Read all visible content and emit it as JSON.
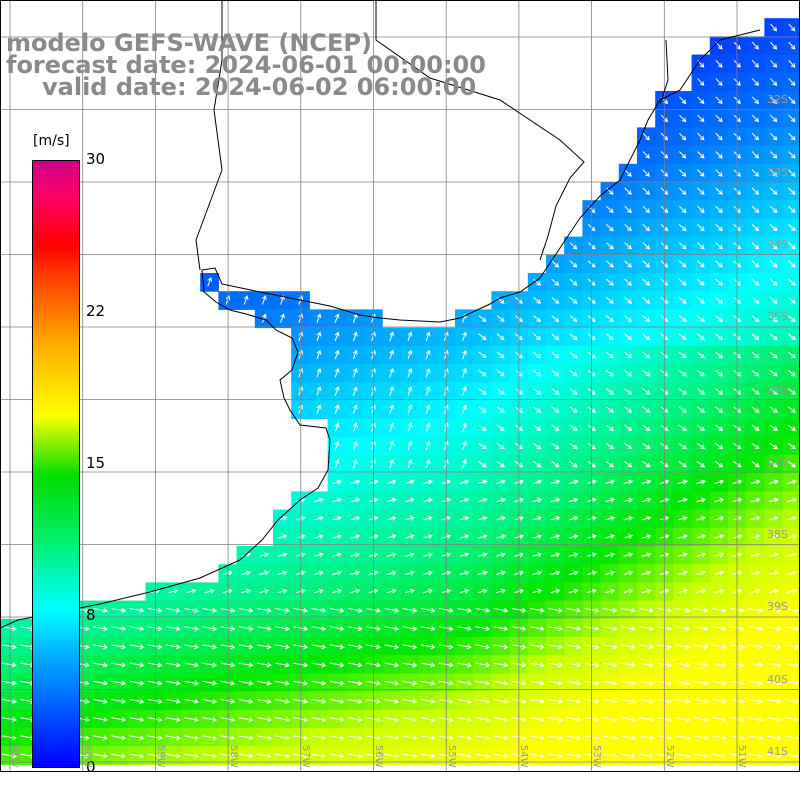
{
  "title": {
    "line1": "modelo GEFS-WAVE (NCEP)",
    "line2": "forecast date: 2024-06-01 00:00:00",
    "line3": "valid date: 2024-06-02 06:00:00"
  },
  "colorbar": {
    "unit": "[m/s]",
    "ticks": [
      "30",
      "22",
      "15",
      "8",
      "0"
    ],
    "tick_values": [
      30,
      22,
      15,
      8,
      0
    ]
  },
  "latitude_labels": [
    "32S",
    "33S",
    "34S",
    "35S",
    "36S",
    "37S",
    "38S",
    "39S",
    "40S",
    "41S"
  ],
  "longitude_labels": [
    "61W",
    "60W",
    "59W",
    "58W",
    "57W",
    "56W",
    "55W",
    "54W",
    "53W",
    "52W",
    "51W"
  ],
  "colors": {
    "land": "#ffffff",
    "coast": "#000000",
    "grid": "#808080",
    "arrows": "#ffffff",
    "title_text": "#8a8a8a"
  }
}
